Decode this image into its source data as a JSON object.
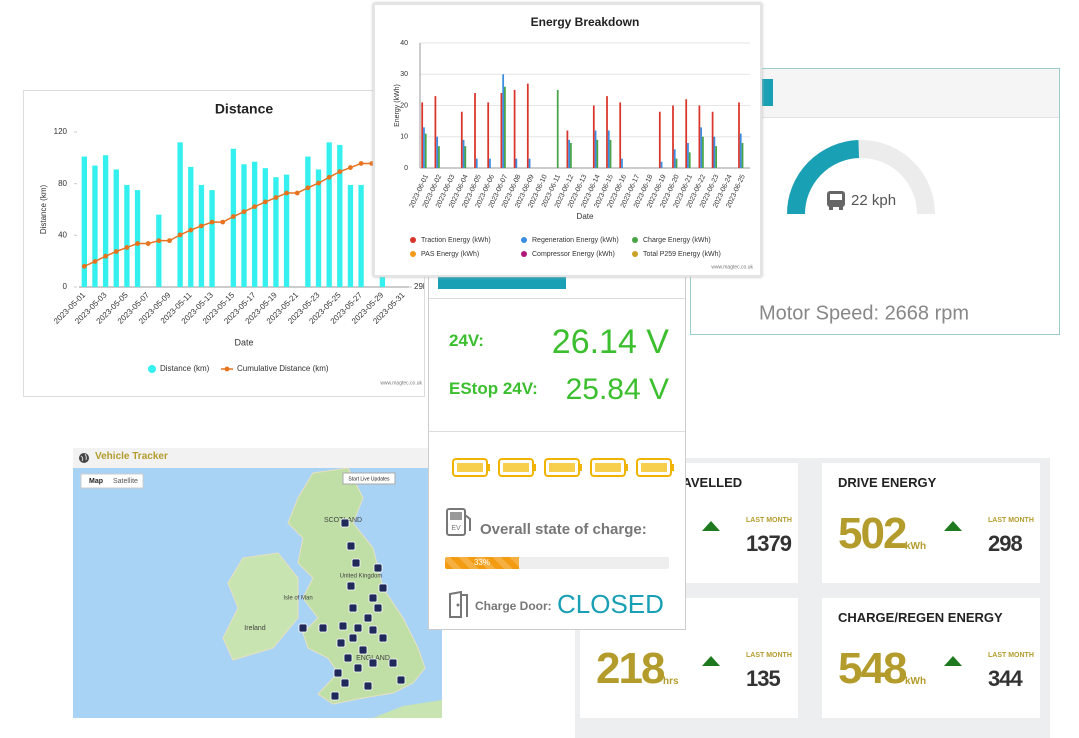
{
  "chart_data": [
    {
      "type": "bar",
      "title": "Distance",
      "xlabel": "Date",
      "ylabel": "Distance (km)",
      "categories": [
        "2023-05-01",
        null,
        "2023-05-03",
        null,
        "2023-05-05",
        null,
        "2023-05-07",
        null,
        "2023-05-09",
        null,
        "2023-05-11",
        null,
        "2023-05-13",
        null,
        "2023-05-15",
        null,
        "2023-05-17",
        null,
        "2023-05-19",
        null,
        "2023-05-21",
        null,
        "2023-05-23",
        null,
        "2023-05-25",
        null,
        "2023-05-27",
        null,
        "2023-05-29",
        null,
        "2023-05-31"
      ],
      "series": [
        {
          "name": "Distance (km)",
          "type": "bar",
          "color": "#34f0ee",
          "values": [
            101,
            94,
            102,
            91,
            79,
            75,
            0,
            56,
            0,
            112,
            93,
            79,
            75,
            0,
            107,
            95,
            97,
            92,
            85,
            87,
            0,
            101,
            91,
            112,
            110,
            79,
            79,
            0,
            100,
            0,
            0
          ]
        },
        {
          "name": "Cumulative Distance (km)",
          "type": "line",
          "color": "#e8731e",
          "axis": "y2",
          "values": [
            29400,
            29494,
            29596,
            29687,
            29766,
            29841,
            29841,
            29897,
            29897,
            30009,
            30102,
            30181,
            30256,
            30256,
            30363,
            30458,
            30555,
            30647,
            30732,
            30819,
            30819,
            30920,
            31011,
            31123,
            31233,
            31312,
            31391,
            31391,
            31491,
            31491,
            31491
          ]
        }
      ],
      "ylim": [
        0,
        120
      ],
      "yticks": [
        0,
        40,
        80,
        120
      ],
      "y2lim": [
        29000,
        32000
      ],
      "y2ticks": [
        {
          "value": 29000,
          "label": "29k"
        }
      ],
      "grid": false,
      "credit": "www.magtec.co.uk"
    },
    {
      "type": "bar",
      "title": "Energy Breakdown",
      "xlabel": "Date",
      "ylabel": "Energy (kWh)",
      "categories": [
        "2023-06-01",
        "2023-06-02",
        "2023-06-03",
        "2023-06-04",
        "2023-06-05",
        "2023-06-06",
        "2023-06-07",
        "2023-06-08",
        "2023-06-09",
        "2023-06-10",
        "2023-06-11",
        "2023-06-12",
        "2023-06-13",
        "2023-06-14",
        "2023-06-15",
        "2023-06-16",
        "2023-06-17",
        "2023-06-18",
        "2023-06-19",
        "2023-06-20",
        "2023-06-21",
        "2023-06-22",
        "2023-06-23",
        "2023-06-24",
        "2023-06-25"
      ],
      "series": [
        {
          "name": "Traction Energy (kWh)",
          "color": "#d9352c",
          "values": [
            21,
            23,
            0,
            18,
            24,
            21,
            24,
            25,
            27,
            0,
            0,
            12,
            0,
            20,
            23,
            21,
            0,
            0,
            18,
            20,
            22,
            20,
            18,
            0,
            21
          ]
        },
        {
          "name": "Regeneration Energy (kWh)",
          "color": "#3b8de0",
          "values": [
            13,
            10,
            0,
            9,
            3,
            3,
            30,
            3,
            3,
            0,
            0,
            9,
            0,
            12,
            12,
            3,
            0,
            0,
            2,
            6,
            8,
            13,
            10,
            0,
            11
          ]
        },
        {
          "name": "Charge Energy (kWh)",
          "color": "#47a447",
          "values": [
            11,
            7,
            0,
            7,
            0,
            0,
            26,
            0,
            0,
            0,
            25,
            8,
            0,
            9,
            9,
            0,
            0,
            0,
            0,
            3,
            5,
            10,
            7,
            0,
            8
          ]
        },
        {
          "name": "PAS Energy (kWh)",
          "color": "#f59a1a",
          "values": [
            0,
            0,
            0,
            0,
            0,
            0,
            0,
            0,
            0,
            0,
            0,
            0,
            0,
            0,
            0,
            0,
            0,
            0,
            0,
            0,
            0,
            0,
            0,
            0,
            0
          ]
        },
        {
          "name": "Compressor Energy (kWh)",
          "color": "#b0177a",
          "values": [
            0,
            0,
            0,
            0,
            0,
            0,
            0,
            0,
            0,
            0,
            0,
            0,
            0,
            0,
            0,
            0,
            0,
            0,
            0,
            0,
            0,
            0,
            0,
            0,
            0
          ]
        },
        {
          "name": "Total P259 Energy (kWh)",
          "color": "#c9a227",
          "values": [
            0,
            0,
            0,
            0,
            0,
            0,
            0,
            0,
            0,
            0,
            0,
            0,
            0,
            0,
            0,
            0,
            0,
            0,
            0,
            0,
            0,
            0,
            0,
            0,
            0
          ]
        }
      ],
      "ylim": [
        0,
        40
      ],
      "yticks": [
        0,
        10,
        20,
        30,
        40
      ],
      "grid": true,
      "credit": "www.magtec.co.uk"
    }
  ],
  "gauge": {
    "value": 22,
    "max": 45,
    "label": "22 kph",
    "color": "#1aa0b4",
    "motor_speed": "Motor Speed: 2668 rpm"
  },
  "power": {
    "rows": [
      {
        "label": "24V:",
        "value": "26.14 V"
      },
      {
        "label": "EStop 24V:",
        "value": "25.84 V"
      }
    ],
    "charge_label": "Overall state of charge:",
    "charge_percent": 33,
    "charge_percent_label": "33%",
    "door_label": "Charge Door:",
    "door_state": "CLOSED"
  },
  "stats": {
    "cards": [
      {
        "title": "DISTANCE TRAVELLED",
        "compare_label": "LAST MONTH",
        "last_month": 1379
      },
      {
        "title": "DRIVE ENERGY",
        "value": 502,
        "unit": "kWh",
        "compare_label": "LAST MONTH",
        "last_month": 298
      },
      {
        "value": 218,
        "unit": "hrs",
        "compare_label": "LAST MONTH",
        "last_month": 135
      },
      {
        "title": "CHARGE/REGEN ENERGY",
        "value": 548,
        "unit": "kWh",
        "compare_label": "LAST MONTH",
        "last_month": 344
      }
    ]
  },
  "map": {
    "title": "Vehicle Tracker",
    "tabs": [
      "Map",
      "Satellite"
    ],
    "button": "Start Live Updates",
    "places": [
      "SCOTLAND",
      "United Kingdom",
      "Isle of Man",
      "Ireland",
      "ENGLAND"
    ]
  }
}
